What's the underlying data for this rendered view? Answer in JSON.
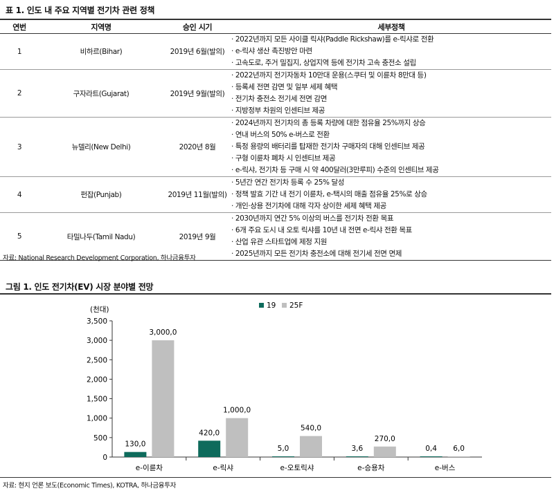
{
  "table": {
    "title": "표 1. 인도 내 주요 지역별 전기차 관련 정책",
    "headers": [
      "연번",
      "지역명",
      "승인 시기",
      "세부정책"
    ],
    "rows": [
      {
        "no": "1",
        "region": "비하르(Bihar)",
        "date": "2019년 6월(발의)",
        "policies": [
          "· 2022년까지 모든 사이클 릭샤(Paddle Rickshaw)를 e-릭샤로 전환",
          "· e-릭샤 생산 촉진방안 마련",
          "· 고속도로, 주거 밀집지, 상업지역 등에 전기차 고속 충전소 설립"
        ]
      },
      {
        "no": "2",
        "region": "구자라트(Gujarat)",
        "date": "2019년 9월(발의)",
        "policies": [
          "· 2022년까지 전기자동차 10만대 운용(스쿠터 및 이륜차 8만대 등)",
          "· 등록세 전면 감면 및 일부 세제 혜택",
          "· 전기차 충전소 전기세 전면 감면",
          "· 지방정부 차원의 인센티브 제공"
        ]
      },
      {
        "no": "3",
        "region": "뉴델리(New Delhi)",
        "date": "2020년 8월",
        "policies": [
          "· 2024년까지 전기차의 총 등록 차량에 대한 점유율 25%까지 상승",
          "· 연내 버스의 50% e-버스로 전환",
          "· 특정 용량의 배터리를 탑재한 전기차 구매자의 대해 인센티브 제공",
          "· 구형 이륜차 폐차 시 인센티브 제공",
          "· e-릭샤, 전기차 등 구매 시 약 400달러(3만루피) 수준의 인센티브 제공"
        ]
      },
      {
        "no": "4",
        "region": "펀잡(Punjab)",
        "date": "2019년 11월(발의)",
        "policies": [
          "· 5년간 연간 전기차 등록 수 25% 달성",
          "· 정책 발효 기간 내 전기 이륜차, e-택시의 매출 점유율 25%로 상승",
          "· 개인·상용 전기차에 대해 각자 상이한 세제 혜택 제공"
        ]
      },
      {
        "no": "5",
        "region": "타밀나두(Tamil Nadu)",
        "date": "2019년 9월",
        "policies": [
          "· 2030년까지 연간 5% 이상의 버스를 전기차 전환 목표",
          "· 6개 주요 도시 내 오토 릭샤를 10년 내 전면 e-릭샤 전환 목표",
          "· 산업 유관 스타트업에 제정 지원",
          "· 2025년까지 모든 전기차 충전소에 대해 전기세 전면 면제"
        ]
      }
    ],
    "source": "자료: National Research Development Corporation, 하나금융투자"
  },
  "figure": {
    "title": "그림 1. 인도 전기차(EV) 시장 분야별 전망",
    "source": "자료: 현지 언론 보도(Economic Times), KOTRA, 하나금융투자"
  },
  "chart_data": {
    "type": "bar",
    "unit_label": "(천대)",
    "categories": [
      "e-이륜차",
      "e-릭샤",
      "e-오토릭샤",
      "e-승용차",
      "e-버스"
    ],
    "series": [
      {
        "name": "19",
        "color": "#0e6b5c",
        "values": [
          130.0,
          420.0,
          5.0,
          3.6,
          0.4
        ]
      },
      {
        "name": "25F",
        "color": "#bfbfbf",
        "values": [
          3000.0,
          1000.0,
          540.0,
          270.0,
          6.0
        ]
      }
    ],
    "data_labels": [
      [
        "130,0",
        "420,0",
        "5,0",
        "3,6",
        "0,4"
      ],
      [
        "3,000,0",
        "1,000,0",
        "540,0",
        "270,0",
        "6,0"
      ]
    ],
    "yticks": [
      0,
      500,
      1000,
      1500,
      2000,
      2500,
      3000,
      3500
    ],
    "ytick_labels": [
      "0",
      "500",
      "1,000",
      "1,500",
      "2,000",
      "2,500",
      "3,000",
      "3,500"
    ],
    "ylim": [
      0,
      3500
    ],
    "legend_position": "top-center",
    "grid": false
  }
}
